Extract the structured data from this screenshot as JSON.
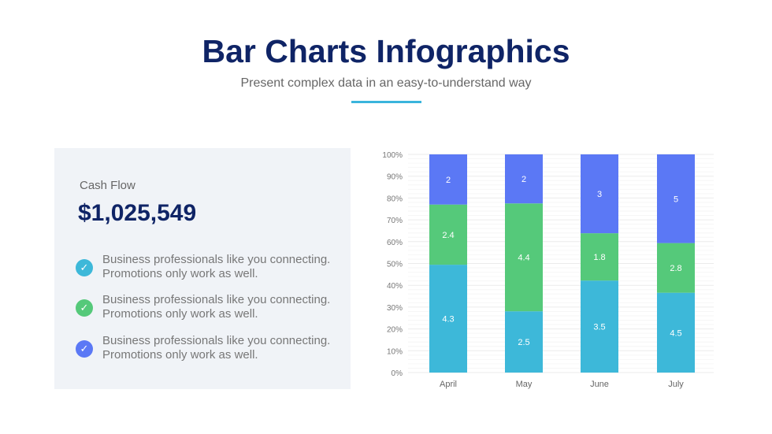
{
  "header": {
    "title": "Bar Charts Infographics",
    "subtitle": "Present complex data in an easy-to-understand way"
  },
  "card": {
    "label": "Cash Flow",
    "value": "$1,025,549",
    "items": [
      {
        "line1": "Business professionals like you connecting.",
        "line2": "Promotions only work as well.",
        "icon": "check-icon",
        "color": "#3db8d9"
      },
      {
        "line1": "Business professionals like you connecting.",
        "line2": "Promotions only work as well.",
        "icon": "check-icon",
        "color": "#55c97a"
      },
      {
        "line1": "Business professionals like you connecting.",
        "line2": "Promotions only work as well.",
        "icon": "check-icon",
        "color": "#5b78f5"
      }
    ]
  },
  "chart_data": {
    "type": "bar",
    "stacked": "percent",
    "categories": [
      "April",
      "May",
      "June",
      "July"
    ],
    "series": [
      {
        "values": [
          4.3,
          2.5,
          3.5,
          4.5
        ],
        "color": "#3db8d9"
      },
      {
        "values": [
          2.4,
          4.4,
          1.8,
          2.8
        ],
        "color": "#55c97a"
      },
      {
        "values": [
          2,
          2,
          3,
          5
        ],
        "color": "#5b78f5"
      }
    ],
    "yticks": [
      "0%",
      "10%",
      "20%",
      "30%",
      "40%",
      "50%",
      "60%",
      "70%",
      "80%",
      "90%",
      "100%"
    ],
    "ylim": [
      0,
      100
    ],
    "grid": true,
    "legend": "none"
  }
}
